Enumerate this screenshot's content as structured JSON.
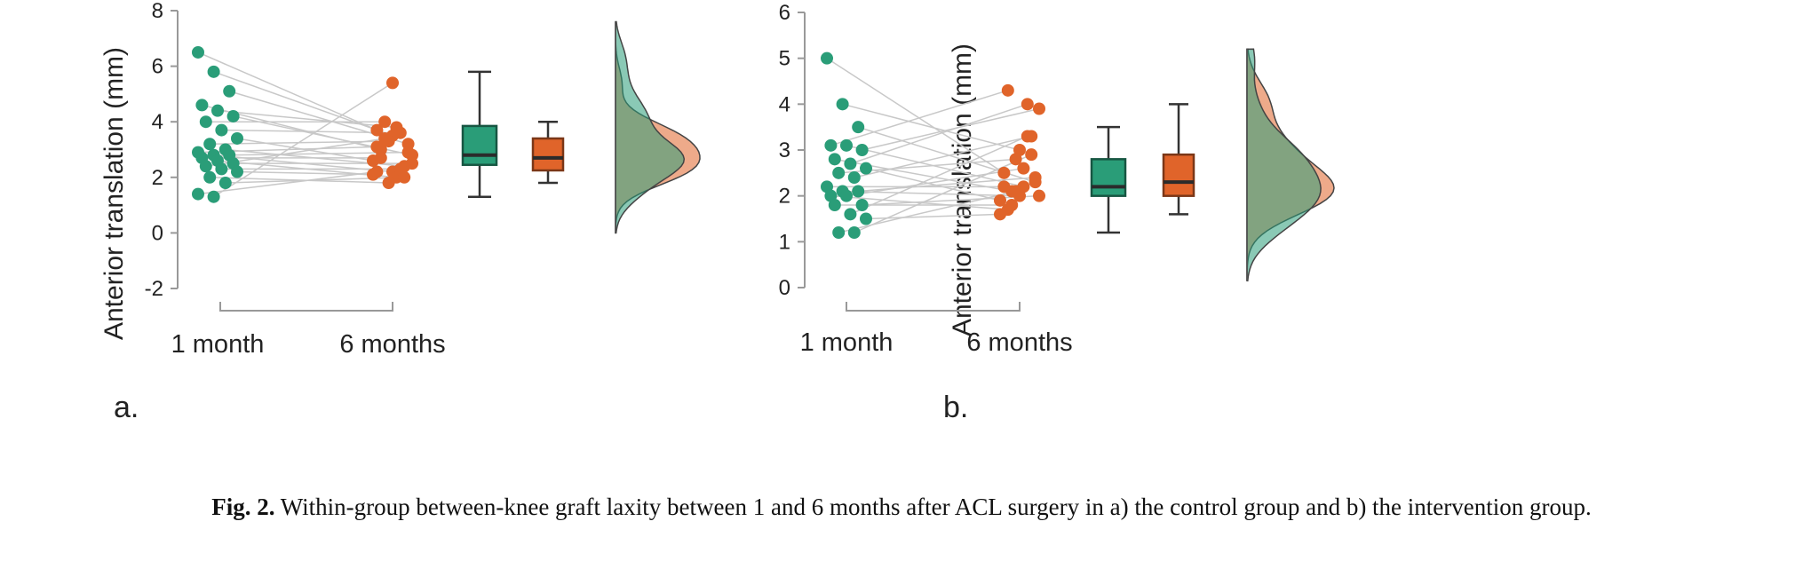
{
  "colors": {
    "one_month": "#2a9d78",
    "six_months": "#e0642a",
    "pair_line": "#c8c8c8",
    "axis": "#999999"
  },
  "caption": {
    "label": "Fig. 2.",
    "text": "Within-group between-knee graft laxity between 1 and 6 months after ACL surgery in a) the control group and b) the intervention group."
  },
  "chart_data": [
    {
      "type": "raincloud",
      "panel_label": "a.",
      "ylabel": "Anterior translation (mm)",
      "ylim": [
        -2,
        8
      ],
      "yticks": [
        -2,
        0,
        2,
        4,
        6,
        8
      ],
      "categories": [
        "1 month",
        "6 months"
      ],
      "pairs": [
        [
          6.5,
          3.7
        ],
        [
          5.8,
          3.5
        ],
        [
          5.1,
          3.2
        ],
        [
          4.6,
          3.0
        ],
        [
          4.4,
          3.8
        ],
        [
          4.2,
          2.8
        ],
        [
          4.0,
          4.0
        ],
        [
          3.7,
          3.6
        ],
        [
          3.4,
          2.6
        ],
        [
          3.2,
          3.3
        ],
        [
          3.0,
          2.4
        ],
        [
          2.9,
          3.1
        ],
        [
          2.8,
          2.2
        ],
        [
          2.8,
          2.9
        ],
        [
          2.7,
          2.7
        ],
        [
          2.6,
          2.0
        ],
        [
          2.5,
          2.5
        ],
        [
          2.4,
          3.4
        ],
        [
          2.3,
          2.3
        ],
        [
          2.2,
          2.1
        ],
        [
          2.0,
          1.8
        ],
        [
          1.8,
          2.0
        ],
        [
          1.4,
          2.2
        ],
        [
          1.3,
          5.4
        ]
      ],
      "boxes": [
        {
          "name": "1 month",
          "min": 1.3,
          "q1": 2.45,
          "median": 2.8,
          "q3": 3.85,
          "max": 5.8
        },
        {
          "name": "6 months",
          "min": 1.8,
          "q1": 2.25,
          "median": 2.7,
          "q3": 3.4,
          "max": 4.0
        }
      ]
    },
    {
      "type": "raincloud",
      "panel_label": "b.",
      "ylabel": "Anterior translation (mm)",
      "ylim": [
        0,
        6
      ],
      "yticks": [
        0,
        1,
        2,
        3,
        4,
        5,
        6
      ],
      "categories": [
        "1 month",
        "6 months"
      ],
      "pairs": [
        [
          5.0,
          2.5
        ],
        [
          4.0,
          3.0
        ],
        [
          3.5,
          2.3
        ],
        [
          3.1,
          4.3
        ],
        [
          3.1,
          2.2
        ],
        [
          3.0,
          3.9
        ],
        [
          2.8,
          2.1
        ],
        [
          2.7,
          4.0
        ],
        [
          2.6,
          1.9
        ],
        [
          2.5,
          2.8
        ],
        [
          2.4,
          3.3
        ],
        [
          2.2,
          2.2
        ],
        [
          2.1,
          2.0
        ],
        [
          2.1,
          2.4
        ],
        [
          2.0,
          1.7
        ],
        [
          2.0,
          2.6
        ],
        [
          1.8,
          2.0
        ],
        [
          1.8,
          1.8
        ],
        [
          1.6,
          3.3
        ],
        [
          1.5,
          1.6
        ],
        [
          1.2,
          2.1
        ],
        [
          1.2,
          2.9
        ]
      ],
      "boxes": [
        {
          "name": "1 month",
          "min": 1.2,
          "q1": 2.0,
          "median": 2.2,
          "q3": 2.8,
          "max": 3.5
        },
        {
          "name": "6 months",
          "min": 1.6,
          "q1": 2.0,
          "median": 2.3,
          "q3": 2.9,
          "max": 4.0
        }
      ]
    }
  ]
}
